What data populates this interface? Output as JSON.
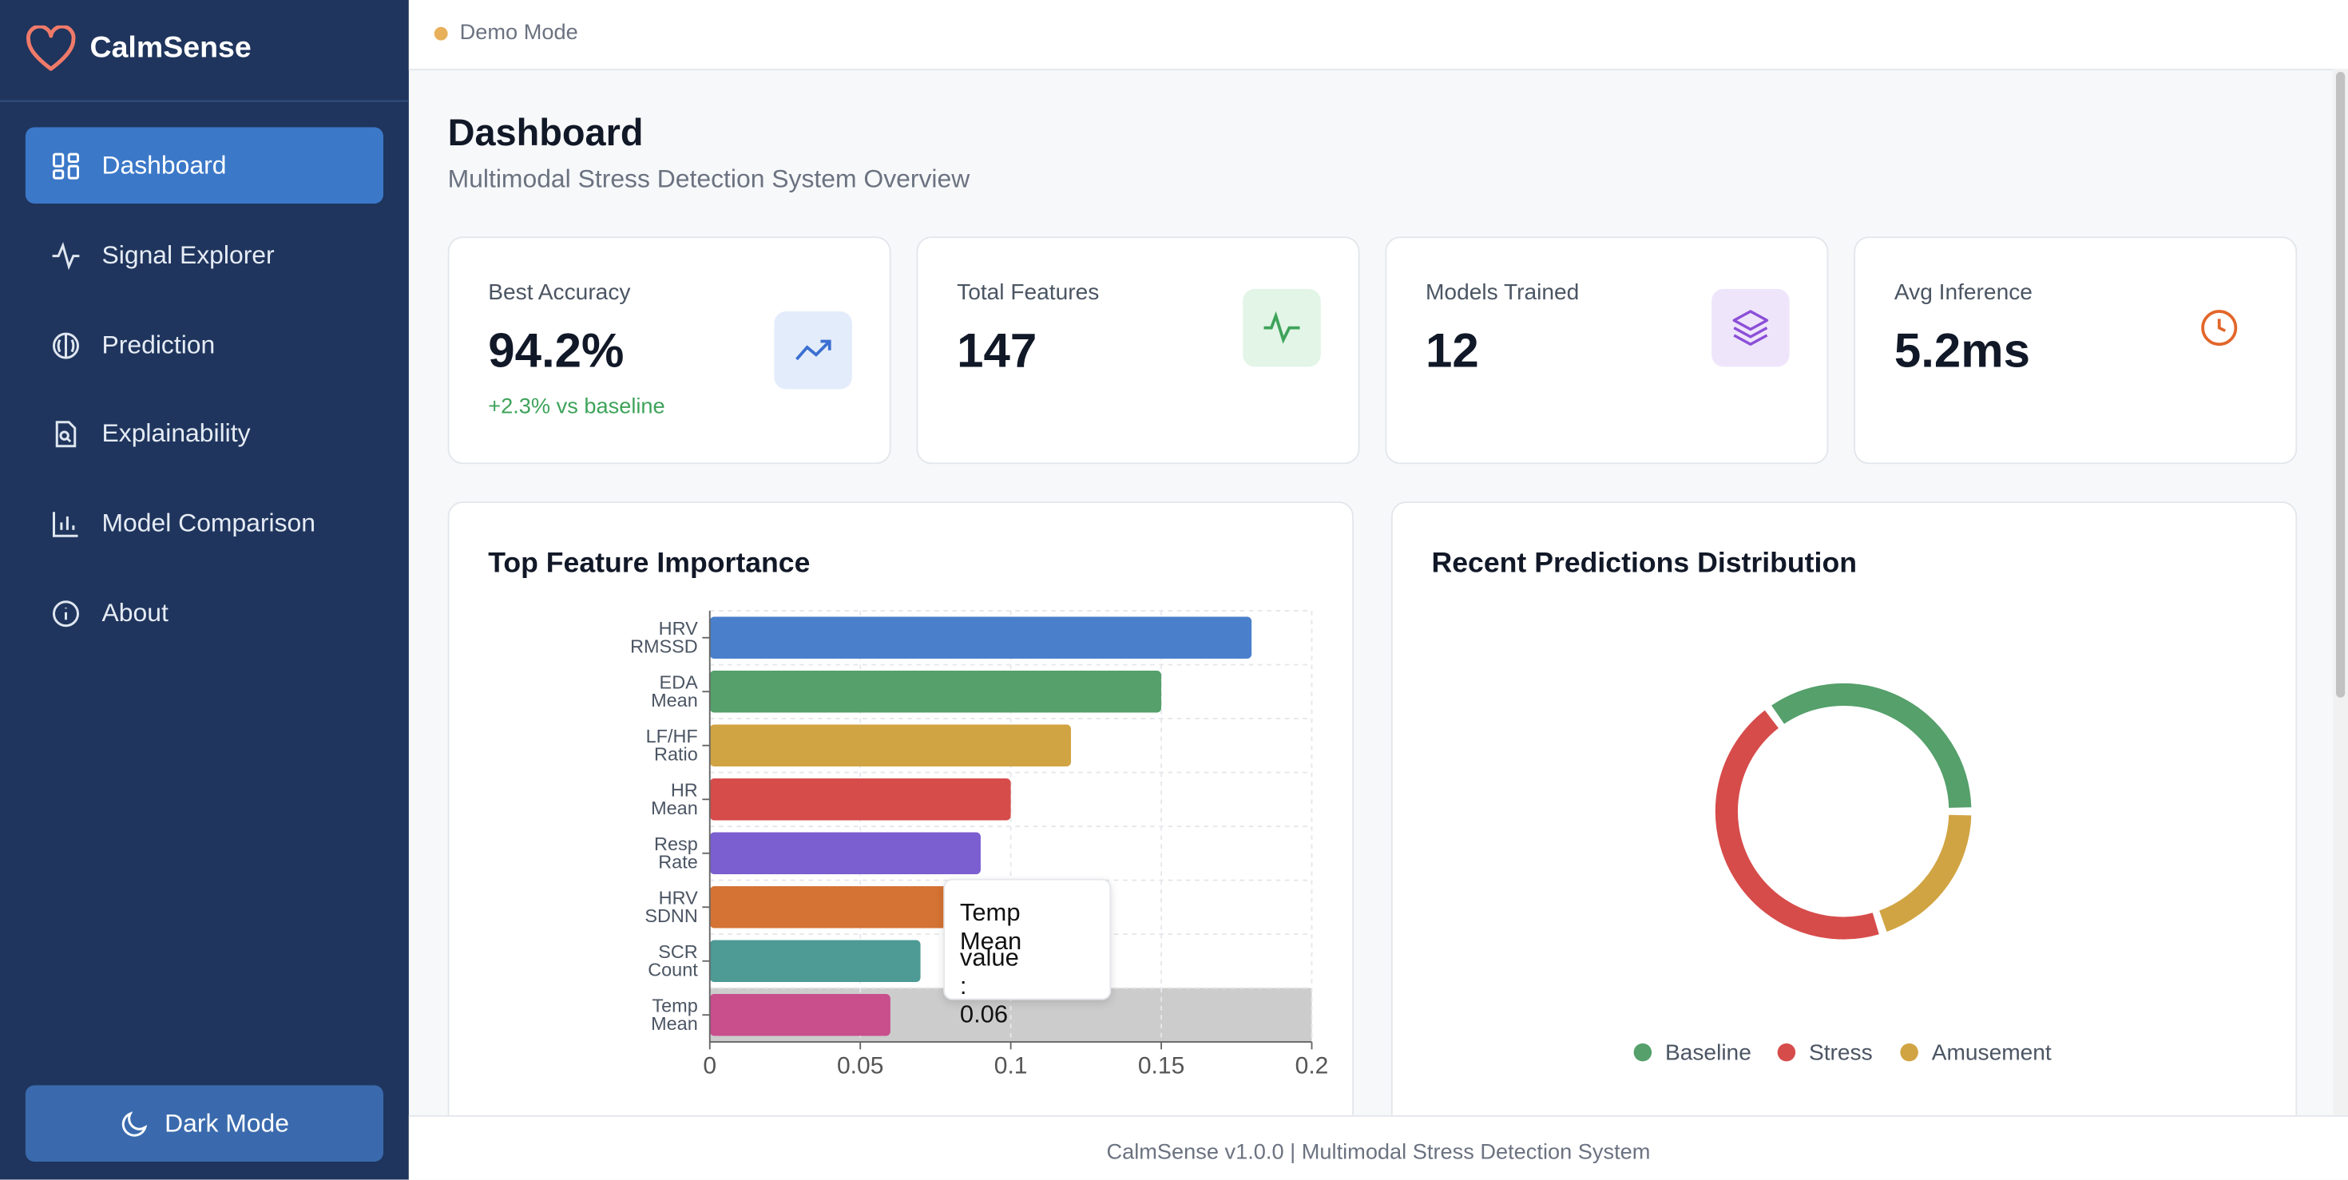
{
  "sidebar": {
    "brand": "CalmSense",
    "nav": [
      "Dashboard",
      "Signal Explorer",
      "Prediction",
      "Explainability",
      "Model Comparison",
      "About"
    ],
    "dark_mode": "Dark Mode"
  },
  "topbar": {
    "mode": "Demo Mode"
  },
  "page": {
    "title": "Dashboard",
    "subtitle": "Multimodal Stress Detection System Overview"
  },
  "stats": [
    {
      "label": "Best Accuracy",
      "value": "94.2%",
      "note": "+2.3% vs baseline"
    },
    {
      "label": "Total Features",
      "value": "147"
    },
    {
      "label": "Models Trained",
      "value": "12"
    },
    {
      "label": "Avg Inference",
      "value": "5.2ms"
    }
  ],
  "chart_data": [
    {
      "type": "bar",
      "orientation": "horizontal",
      "title": "Top Feature Importance",
      "categories": [
        "HRV RMSSD",
        "EDA Mean",
        "LF/HF Ratio",
        "HR Mean",
        "Resp Rate",
        "HRV SDNN",
        "SCR Count",
        "Temp Mean"
      ],
      "values": [
        0.18,
        0.15,
        0.12,
        0.1,
        0.09,
        0.08,
        0.07,
        0.06
      ],
      "colors": [
        "#4a7fcb",
        "#55a06b",
        "#d1a443",
        "#d64c4a",
        "#7b5ed0",
        "#d47334",
        "#4e9a95",
        "#c94e8c"
      ],
      "xlim": [
        0,
        0.2
      ],
      "xticks": [
        0,
        0.05,
        0.1,
        0.15,
        0.2
      ],
      "grid": true,
      "tooltip": {
        "title": "Temp Mean",
        "text": "value : 0.06"
      }
    },
    {
      "type": "donut",
      "title": "Recent Predictions Distribution",
      "categories": [
        "Baseline",
        "Stress",
        "Amusement"
      ],
      "values": [
        35,
        45,
        20
      ],
      "colors": [
        "#55a06b",
        "#d64c4a",
        "#d1a443"
      ],
      "legend": "bottom"
    }
  ],
  "footer": {
    "text": "CalmSense v1.0.0 | Multimodal Stress Detection System"
  }
}
